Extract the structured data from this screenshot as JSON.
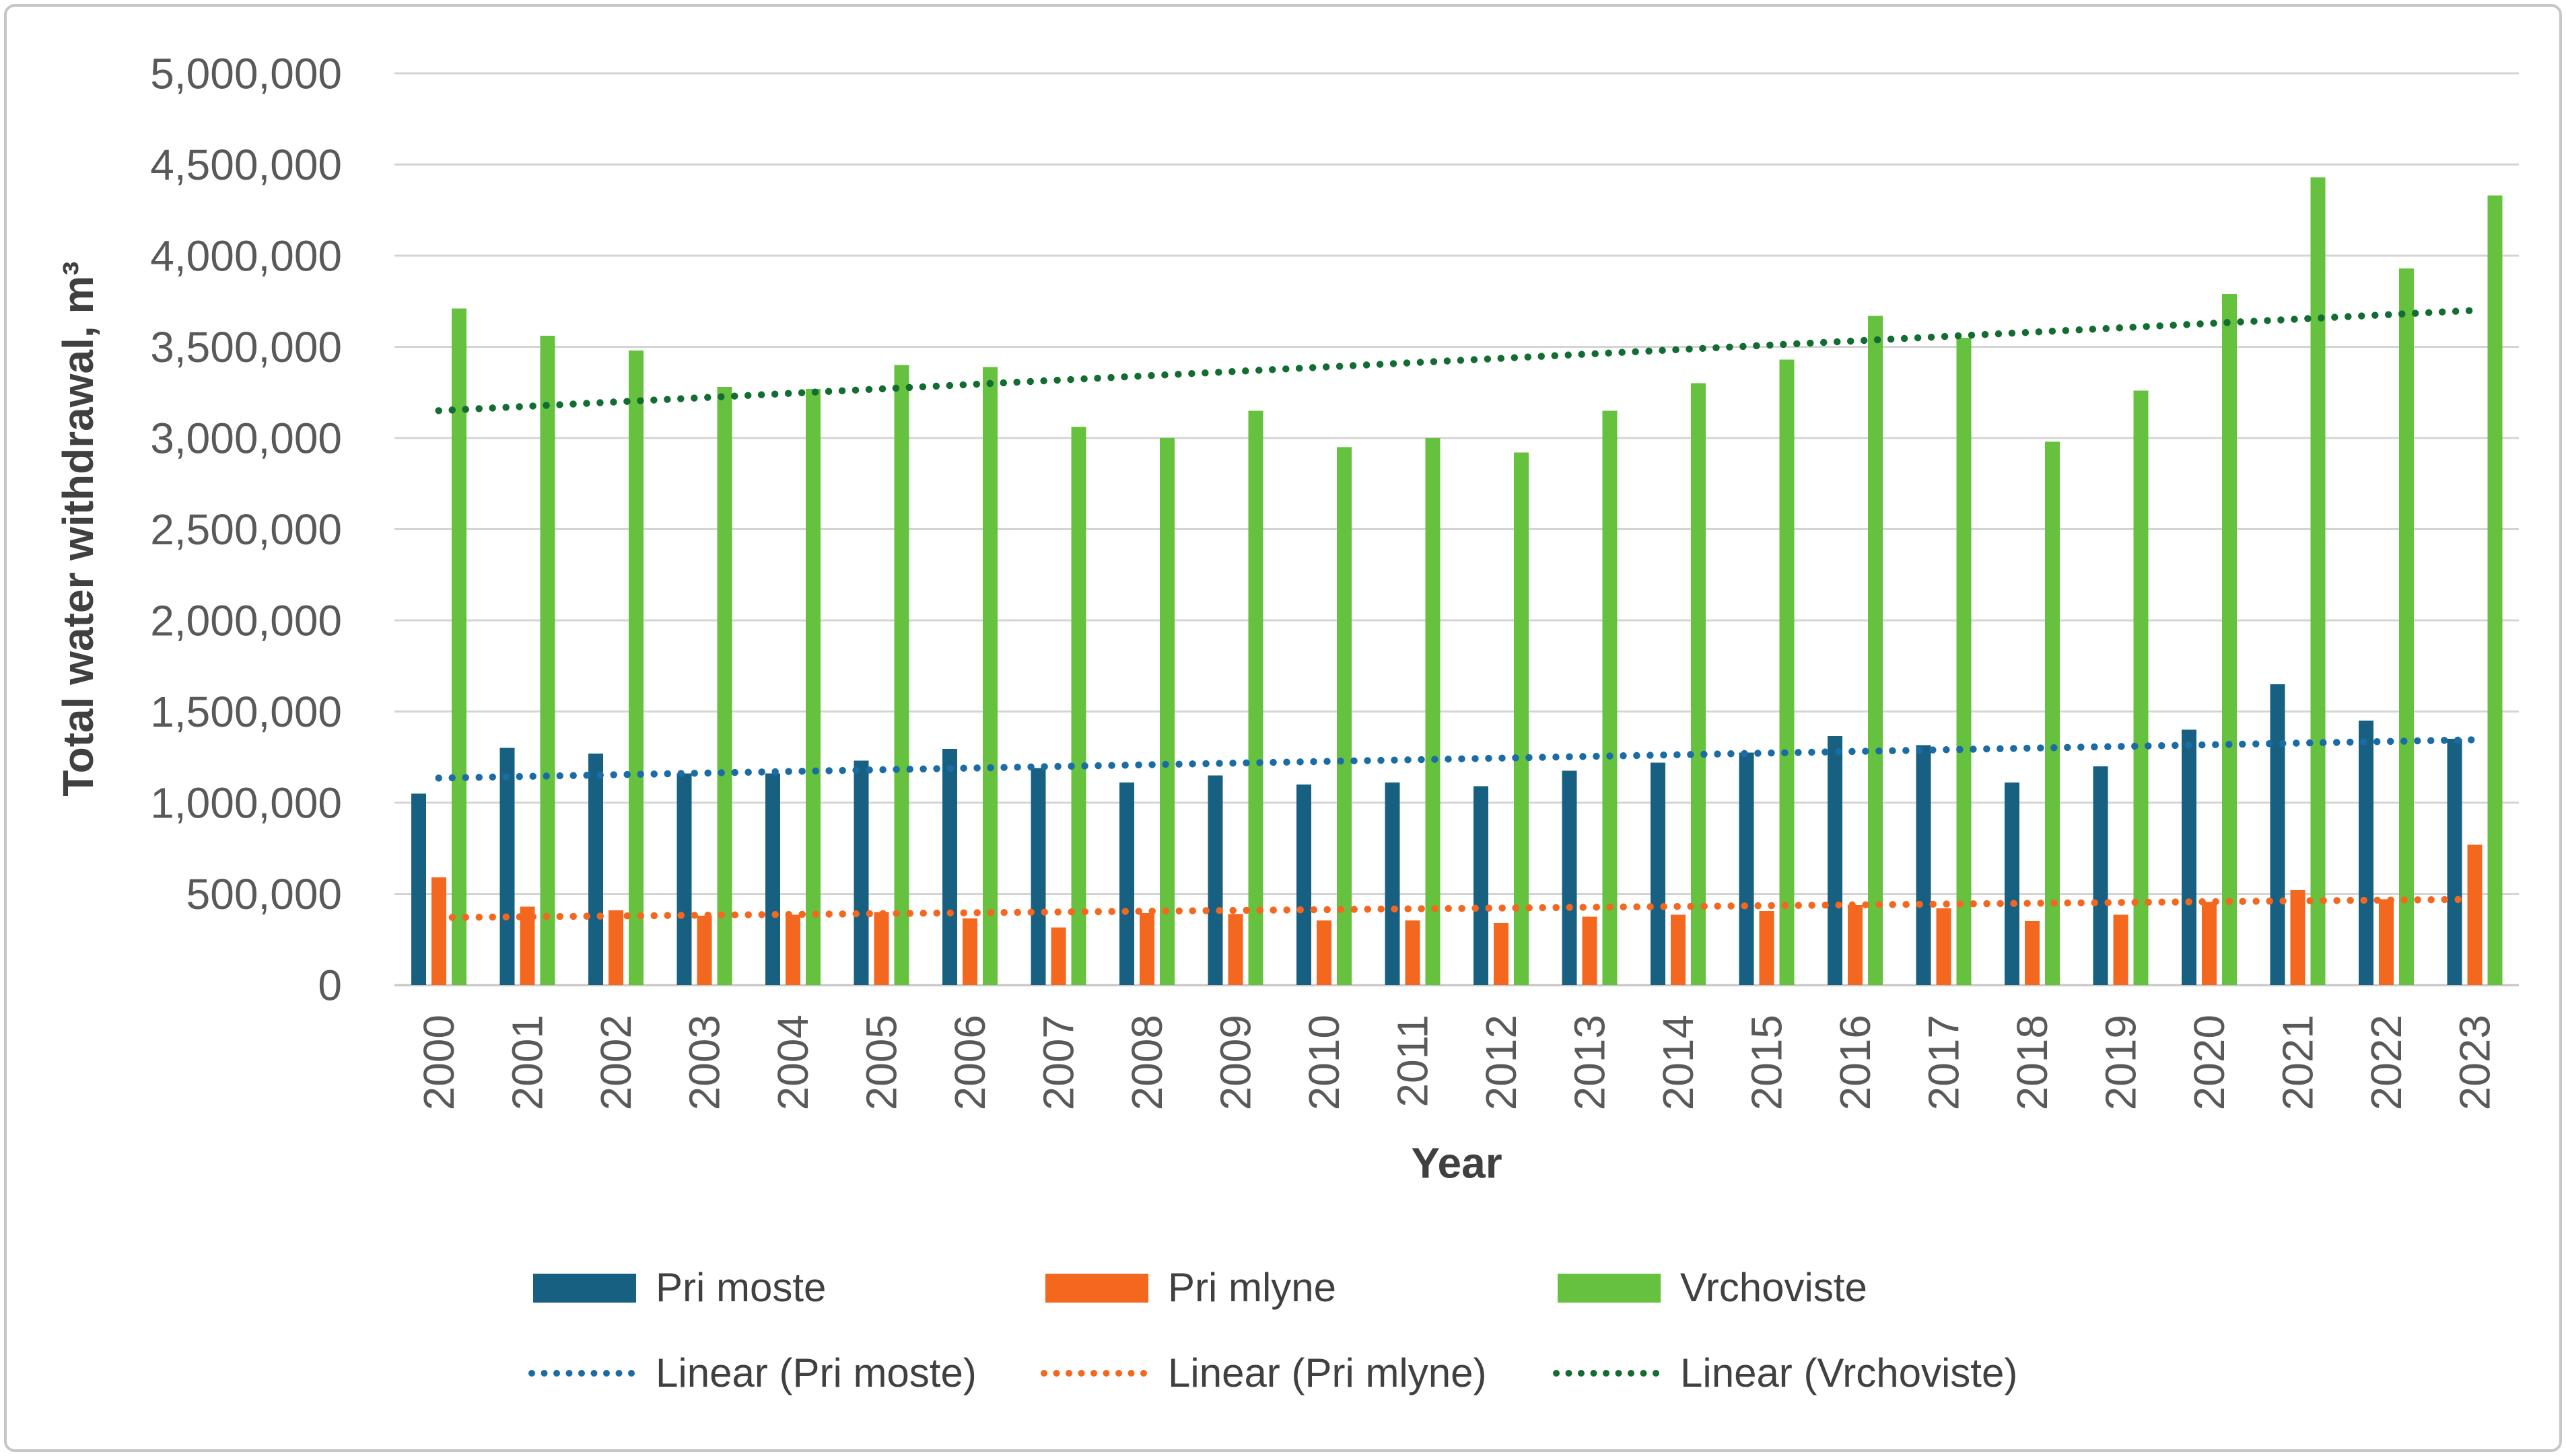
{
  "figure": {
    "y_axis_title": "Total water withdrawal, m³",
    "x_axis_title": "Year"
  },
  "legend": {
    "pri_moste": "Pri moste",
    "pri_mlyne": "Pri mlyne",
    "vrchoviste": "Vrchoviste",
    "linear_pri_moste": "Linear (Pri moste)",
    "linear_pri_mlyne": "Linear (Pri mlyne)",
    "linear_vrchoviste": "Linear (Vrchoviste)"
  },
  "colors": {
    "pri_moste": "#176082",
    "pri_mlyne": "#f4671f",
    "vrchoviste": "#66c13e",
    "linear_pri_moste": "#1b6ca4",
    "linear_pri_mlyne": "#f4671f",
    "linear_vrchoviste": "#136c31",
    "gridline": "#d4d4d4",
    "axis_line": "#c9c9c9",
    "tick_text": "#595959",
    "title_text": "#404040"
  },
  "chart_data": {
    "type": "bar",
    "title": "",
    "xlabel": "Year",
    "ylabel": "Total water withdrawal, m³",
    "ylim": [
      0,
      5000000
    ],
    "y_tick_step": 500000,
    "grid": true,
    "legend_position": "bottom",
    "y_tick_labels": [
      "5,000,000",
      "4,500,000",
      "4,000,000",
      "3,500,000",
      "3,000,000",
      "2,500,000",
      "2,000,000",
      "1,500,000",
      "1,000,000",
      "500,000",
      "0"
    ],
    "categories": [
      "2000",
      "2001",
      "2002",
      "2003",
      "2004",
      "2005",
      "2006",
      "2007",
      "2008",
      "2009",
      "2010",
      "2011",
      "2012",
      "2013",
      "2014",
      "2015",
      "2016",
      "2017",
      "2018",
      "2019",
      "2020",
      "2021",
      "2022",
      "2023"
    ],
    "series": [
      {
        "name": "Pri moste",
        "color_key": "pri_moste",
        "values": [
          1050000,
          1300000,
          1270000,
          1160000,
          1160000,
          1230000,
          1295000,
          1190000,
          1110000,
          1150000,
          1100000,
          1110000,
          1090000,
          1175000,
          1220000,
          1275000,
          1365000,
          1315000,
          1110000,
          1200000,
          1400000,
          1650000,
          1450000,
          1350000
        ]
      },
      {
        "name": "Pri mlyne",
        "color_key": "pri_mlyne",
        "values": [
          590000,
          430000,
          410000,
          380000,
          385000,
          400000,
          365000,
          315000,
          395000,
          390000,
          355000,
          355000,
          340000,
          375000,
          385000,
          405000,
          440000,
          420000,
          350000,
          385000,
          455000,
          520000,
          470000,
          770000
        ]
      },
      {
        "name": "Vrchoviste",
        "color_key": "vrchoviste",
        "values": [
          3710000,
          3560000,
          3480000,
          3280000,
          3270000,
          3400000,
          3390000,
          3060000,
          3000000,
          3150000,
          2950000,
          3000000,
          2920000,
          3150000,
          3300000,
          3430000,
          3670000,
          3550000,
          2980000,
          3260000,
          3790000,
          4430000,
          3930000,
          4330000
        ]
      }
    ],
    "trendlines": [
      {
        "name": "Linear (Pri moste)",
        "color_key": "linear_pri_moste",
        "start_value": 1135000,
        "end_value": 1345000
      },
      {
        "name": "Linear (Pri mlyne)",
        "color_key": "linear_pri_mlyne",
        "start_value": 370000,
        "end_value": 470000
      },
      {
        "name": "Linear (Vrchoviste)",
        "color_key": "linear_vrchoviste",
        "start_value": 3150000,
        "end_value": 3700000
      }
    ]
  }
}
